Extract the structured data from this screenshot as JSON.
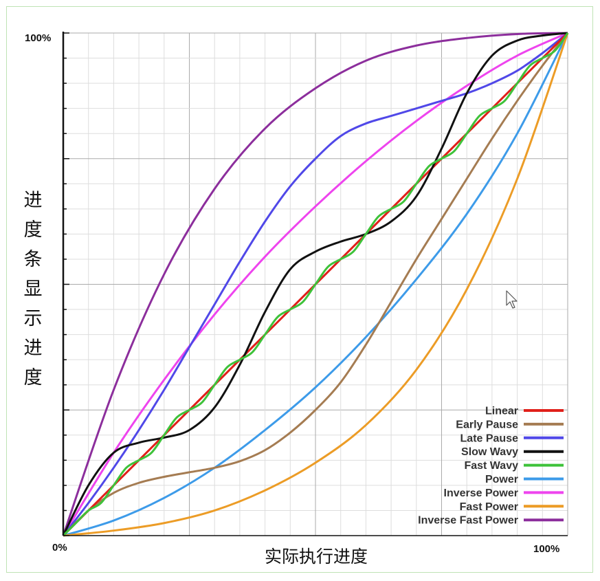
{
  "chart_data": {
    "type": "line",
    "xlabel": "实际执行进度",
    "ylabel": "进度条显示进度",
    "xlim": [
      0,
      100
    ],
    "ylim": [
      0,
      100
    ],
    "x_tick_labels": [
      "0%",
      "100%"
    ],
    "y_tick_labels": [
      "100%"
    ],
    "grid": true,
    "legend_position": "bottom-right",
    "series": [
      {
        "name": "Linear",
        "color": "#e0201a",
        "x": [
          0,
          25,
          50,
          75,
          100
        ],
        "y": [
          0,
          25,
          50,
          75,
          100
        ]
      },
      {
        "name": "Early Pause",
        "color": "#a57c52",
        "x": [
          0,
          5,
          10,
          15,
          20,
          25,
          30,
          35,
          40,
          45,
          50,
          55,
          60,
          65,
          70,
          75,
          80,
          85,
          90,
          95,
          100
        ],
        "y": [
          0,
          5,
          8.5,
          10.5,
          11.7,
          12.6,
          13.5,
          14.8,
          17,
          20.5,
          25,
          30.5,
          38,
          46.5,
          55,
          63,
          71,
          79,
          86.5,
          93.5,
          100
        ]
      },
      {
        "name": "Late Pause",
        "color": "#5048e8",
        "x": [
          0,
          5,
          10,
          15,
          20,
          25,
          30,
          35,
          40,
          45,
          50,
          55,
          60,
          65,
          70,
          75,
          80,
          85,
          90,
          95,
          100
        ],
        "y": [
          0,
          6.5,
          13.5,
          21,
          29,
          37.5,
          46,
          54.5,
          62.5,
          69.5,
          75,
          79.5,
          82,
          83.5,
          85,
          86.5,
          88,
          90,
          92.5,
          96,
          100
        ]
      },
      {
        "name": "Slow Wavy",
        "color": "#111111",
        "x": [
          0,
          5,
          10,
          15,
          20,
          25,
          30,
          35,
          40,
          45,
          50,
          55,
          60,
          65,
          70,
          75,
          80,
          85,
          90,
          95,
          100
        ],
        "y": [
          0,
          10,
          16.5,
          18.5,
          19.5,
          21,
          25.5,
          34,
          44.5,
          53,
          56.5,
          58.5,
          60,
          62.5,
          67.5,
          77,
          88,
          95.5,
          98.5,
          99.5,
          100
        ]
      },
      {
        "name": "Fast Wavy",
        "color": "#3ec23a",
        "x": [
          0,
          2.5,
          5,
          7.5,
          10,
          12.5,
          15,
          17.5,
          20,
          22.5,
          25,
          27.5,
          30,
          32.5,
          35,
          37.5,
          40,
          42.5,
          45,
          47.5,
          50,
          52.5,
          55,
          57.5,
          60,
          62.5,
          65,
          67.5,
          70,
          72.5,
          75,
          77.5,
          80,
          82.5,
          85,
          87.5,
          90,
          92.5,
          95,
          97.5,
          100
        ],
        "y": [
          0,
          2.5,
          5,
          6.5,
          10,
          13.5,
          15,
          16.5,
          20,
          23.5,
          25,
          26.5,
          30,
          33.5,
          35,
          36.5,
          40,
          43.5,
          45,
          46.5,
          50,
          53.5,
          55,
          56.5,
          60,
          63.5,
          65,
          66.5,
          70,
          73.5,
          75,
          76.5,
          80,
          83.5,
          85,
          86.5,
          90,
          93.5,
          95,
          96.5,
          100
        ]
      },
      {
        "name": "Power",
        "color": "#3d9be9",
        "x": [
          0,
          10,
          20,
          30,
          40,
          50,
          60,
          70,
          80,
          90,
          100
        ],
        "y": [
          0,
          3,
          7.5,
          13.5,
          21,
          29.5,
          39.5,
          51,
          64,
          80,
          100
        ]
      },
      {
        "name": "Inverse Power",
        "color": "#ee44ee",
        "x": [
          0,
          10,
          20,
          30,
          40,
          50,
          60,
          70,
          80,
          90,
          100
        ],
        "y": [
          0,
          16.5,
          31,
          44,
          55.5,
          65.5,
          74.5,
          82.5,
          89.5,
          95.5,
          100
        ]
      },
      {
        "name": "Fast Power",
        "color": "#ec9c26",
        "x": [
          0,
          10,
          20,
          30,
          40,
          50,
          60,
          70,
          80,
          90,
          100
        ],
        "y": [
          0,
          1,
          2.5,
          5,
          9,
          14.5,
          22,
          33,
          49,
          71,
          100
        ]
      },
      {
        "name": "Inverse Fast Power",
        "color": "#8c2e9c",
        "x": [
          0,
          10,
          20,
          30,
          40,
          50,
          60,
          70,
          80,
          90,
          100
        ],
        "y": [
          0,
          29,
          52,
          69,
          81,
          89,
          94.5,
          97.5,
          99,
          99.8,
          100
        ]
      }
    ]
  }
}
